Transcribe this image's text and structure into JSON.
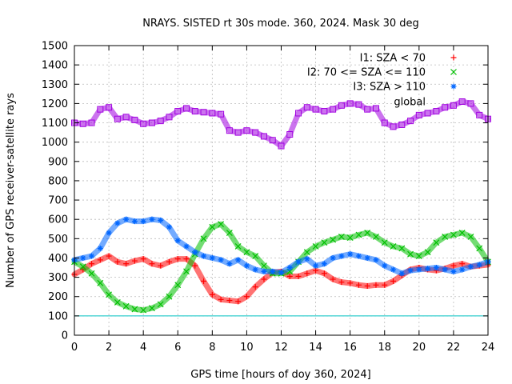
{
  "chart_data": {
    "type": "scatter",
    "title": "NRAYS. SISTED rt 30s mode. 360, 2024. Mask 30 deg",
    "xlabel": "GPS time [hours of doy 360, 2024]",
    "ylabel": "Number of GPS receiver-satellite rays",
    "xlim": [
      0,
      24
    ],
    "ylim": [
      0,
      1500
    ],
    "xticks": [
      "0",
      "2",
      "4",
      "6",
      "8",
      "10",
      "12",
      "14",
      "16",
      "18",
      "20",
      "22",
      "24"
    ],
    "yticks": [
      "0",
      "100",
      "200",
      "300",
      "400",
      "500",
      "600",
      "700",
      "800",
      "900",
      "1000",
      "1100",
      "1200",
      "1300",
      "1400",
      "1500"
    ],
    "grid": true,
    "legend_position": "top-right",
    "threshold_line": {
      "y": 100,
      "color": "#00c0c0"
    },
    "series": [
      {
        "name": "I1: SZA < 70",
        "marker": "+",
        "color": "#ff0000",
        "x": [
          0,
          0.5,
          1,
          1.5,
          2,
          2.5,
          3,
          3.5,
          4,
          4.5,
          5,
          5.5,
          6,
          6.5,
          7,
          7.5,
          8,
          8.5,
          9,
          9.5,
          10,
          10.5,
          11,
          11.5,
          12,
          12.5,
          13,
          13.5,
          14,
          14.5,
          15,
          15.5,
          16,
          16.5,
          17,
          17.5,
          18,
          18.5,
          19,
          19.5,
          20,
          20.5,
          21,
          21.5,
          22,
          22.5,
          23,
          23.5,
          24
        ],
        "y": [
          315,
          340,
          370,
          390,
          410,
          380,
          370,
          385,
          395,
          370,
          360,
          380,
          395,
          395,
          360,
          280,
          210,
          185,
          180,
          175,
          200,
          250,
          290,
          325,
          330,
          305,
          305,
          320,
          335,
          320,
          290,
          275,
          270,
          260,
          255,
          260,
          260,
          280,
          310,
          340,
          350,
          340,
          335,
          345,
          360,
          370,
          355,
          360,
          365
        ]
      },
      {
        "name": "I2: 70 <= SZA <= 110",
        "marker": "x",
        "color": "#00c000",
        "x": [
          0,
          0.5,
          1,
          1.5,
          2,
          2.5,
          3,
          3.5,
          4,
          4.5,
          5,
          5.5,
          6,
          6.5,
          7,
          7.5,
          8,
          8.5,
          9,
          9.5,
          10,
          10.5,
          11,
          11.5,
          12,
          12.5,
          13,
          13.5,
          14,
          14.5,
          15,
          15.5,
          16,
          16.5,
          17,
          17.5,
          18,
          18.5,
          19,
          19.5,
          20,
          20.5,
          21,
          21.5,
          22,
          22.5,
          23,
          23.5,
          24
        ],
        "y": [
          380,
          355,
          320,
          270,
          210,
          170,
          150,
          135,
          130,
          140,
          160,
          200,
          260,
          330,
          420,
          500,
          560,
          575,
          530,
          460,
          430,
          410,
          360,
          320,
          320,
          330,
          380,
          430,
          460,
          480,
          495,
          510,
          505,
          520,
          530,
          510,
          480,
          460,
          450,
          420,
          410,
          430,
          480,
          510,
          520,
          530,
          510,
          450,
          380
        ]
      },
      {
        "name": "I3: SZA > 110",
        "marker": "*",
        "color": "#0066ff",
        "x": [
          0,
          0.5,
          1,
          1.5,
          2,
          2.5,
          3,
          3.5,
          4,
          4.5,
          5,
          5.5,
          6,
          6.5,
          7,
          7.5,
          8,
          8.5,
          9,
          9.5,
          10,
          10.5,
          11,
          11.5,
          12,
          12.5,
          13,
          13.5,
          14,
          14.5,
          15,
          15.5,
          16,
          16.5,
          17,
          17.5,
          18,
          18.5,
          19,
          19.5,
          20,
          20.5,
          21,
          21.5,
          22,
          22.5,
          23,
          23.5,
          24
        ],
        "y": [
          390,
          400,
          410,
          450,
          530,
          580,
          600,
          590,
          590,
          600,
          595,
          560,
          490,
          460,
          430,
          410,
          400,
          390,
          370,
          390,
          360,
          340,
          330,
          330,
          325,
          350,
          380,
          395,
          360,
          370,
          400,
          410,
          420,
          410,
          400,
          390,
          360,
          340,
          320,
          335,
          340,
          345,
          350,
          340,
          330,
          340,
          355,
          365,
          380
        ]
      },
      {
        "name": "global",
        "marker": "square",
        "color": "#a000e0",
        "x": [
          0,
          0.5,
          1,
          1.5,
          2,
          2.5,
          3,
          3.5,
          4,
          4.5,
          5,
          5.5,
          6,
          6.5,
          7,
          7.5,
          8,
          8.5,
          9,
          9.5,
          10,
          10.5,
          11,
          11.5,
          12,
          12.5,
          13,
          13.5,
          14,
          14.5,
          15,
          15.5,
          16,
          16.5,
          17,
          17.5,
          18,
          18.5,
          19,
          19.5,
          20,
          20.5,
          21,
          21.5,
          22,
          22.5,
          23,
          23.5,
          24
        ],
        "y": [
          1100,
          1095,
          1100,
          1170,
          1180,
          1120,
          1130,
          1115,
          1095,
          1100,
          1110,
          1130,
          1160,
          1175,
          1160,
          1155,
          1150,
          1145,
          1060,
          1050,
          1060,
          1050,
          1030,
          1010,
          980,
          1040,
          1150,
          1180,
          1170,
          1160,
          1170,
          1190,
          1200,
          1195,
          1170,
          1175,
          1100,
          1080,
          1090,
          1110,
          1140,
          1150,
          1160,
          1180,
          1190,
          1210,
          1200,
          1140,
          1120
        ]
      }
    ]
  }
}
